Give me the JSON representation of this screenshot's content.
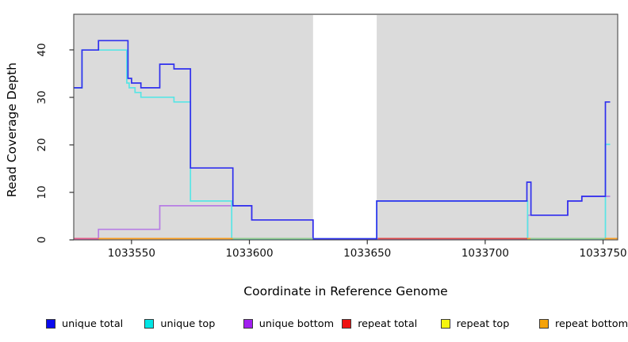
{
  "axes": {
    "x_label": "Coordinate in Reference Genome",
    "y_label": "Read Coverage Depth"
  },
  "chart_data": {
    "type": "line",
    "subtype": "step",
    "title": "",
    "xlabel": "Coordinate in Reference Genome",
    "ylabel": "Read Coverage Depth",
    "xlim": [
      1033525.5,
      1033756.2
    ],
    "ylim": [
      0,
      47.5
    ],
    "x_ticks": [
      1033550,
      1033600,
      1033650,
      1033700,
      1033750
    ],
    "y_ticks": [
      0,
      10,
      20,
      30,
      40
    ],
    "grid": false,
    "plot_background": "#DBDBDB",
    "gap_region": {
      "x1": 1033627,
      "x2": 1033654,
      "note": "white band, no gray background"
    },
    "series": [
      {
        "name": "unique bottom",
        "color": "#B77CE4",
        "draw": true,
        "points": [
          [
            1033525.5,
            0
          ],
          [
            1033536,
            2
          ],
          [
            1033562,
            7
          ],
          [
            1033601,
            4
          ],
          [
            1033627,
            0
          ],
          [
            1033718,
            5
          ],
          [
            1033735,
            8
          ],
          [
            1033741,
            9
          ],
          [
            1033753,
            9
          ]
        ]
      },
      {
        "name": "unique top",
        "color": "#58E5E5",
        "draw": true,
        "points": [
          [
            1033525.5,
            32
          ],
          [
            1033529,
            40
          ],
          [
            1033548,
            33
          ],
          [
            1033549,
            32
          ],
          [
            1033551.5,
            31
          ],
          [
            1033554,
            30
          ],
          [
            1033568,
            29
          ],
          [
            1033575,
            8
          ],
          [
            1033592.5,
            0
          ],
          [
            1033654,
            8
          ],
          [
            1033718,
            0
          ],
          [
            1033751,
            20
          ],
          [
            1033753,
            20
          ]
        ]
      },
      {
        "name": "unique total",
        "color": "#3030EE",
        "draw": true,
        "points": [
          [
            1033525.5,
            32
          ],
          [
            1033529,
            40
          ],
          [
            1033536,
            42
          ],
          [
            1033548.5,
            34
          ],
          [
            1033550,
            33
          ],
          [
            1033554,
            32
          ],
          [
            1033562,
            37
          ],
          [
            1033568,
            36
          ],
          [
            1033575,
            15
          ],
          [
            1033593,
            7
          ],
          [
            1033601,
            4
          ],
          [
            1033627,
            0
          ],
          [
            1033654,
            8
          ],
          [
            1033717.7,
            12
          ],
          [
            1033719.4,
            5
          ],
          [
            1033735,
            8
          ],
          [
            1033741,
            9
          ],
          [
            1033751,
            29
          ],
          [
            1033753,
            29
          ]
        ]
      },
      {
        "name": "repeat total",
        "color": "#DC4B4B",
        "draw": false,
        "points": [
          [
            1033525.5,
            0
          ],
          [
            1033756,
            0
          ]
        ]
      },
      {
        "name": "repeat top",
        "color": "#F5F50F",
        "draw": false,
        "points": [
          [
            1033525.5,
            0
          ],
          [
            1033756,
            0
          ]
        ]
      },
      {
        "name": "repeat bottom",
        "color": "#F89E20",
        "draw": false,
        "points": [
          [
            1033525.5,
            0
          ],
          [
            1033756,
            0
          ]
        ]
      }
    ],
    "baseline_segments": [
      {
        "x1": 1033525.5,
        "x2": 1033536,
        "color": "#E35B8A"
      },
      {
        "x1": 1033536,
        "x2": 1033593,
        "color": "#F89E20"
      },
      {
        "x1": 1033593,
        "x2": 1033626.9,
        "color": "#8FCB8F"
      },
      {
        "x1": 1033654.5,
        "x2": 1033717.9,
        "color": "#DC4B4B"
      },
      {
        "x1": 1033717.9,
        "x2": 1033719.2,
        "color": "#F89E20"
      },
      {
        "x1": 1033719.2,
        "x2": 1033750.8,
        "color": "#8FCB8F"
      },
      {
        "x1": 1033750.8,
        "x2": 1033756.2,
        "color": "#F89E20"
      }
    ],
    "legend": {
      "position": "bottom",
      "entries": [
        {
          "label": "unique total",
          "color": "#0A0AEE"
        },
        {
          "label": "unique top",
          "color": "#00E5E5"
        },
        {
          "label": "unique bottom",
          "color": "#A11FF0"
        },
        {
          "label": "repeat total",
          "color": "#EE1111"
        },
        {
          "label": "repeat top",
          "color": "#F5F50F"
        },
        {
          "label": "repeat bottom",
          "color": "#F5A30A"
        }
      ]
    }
  }
}
